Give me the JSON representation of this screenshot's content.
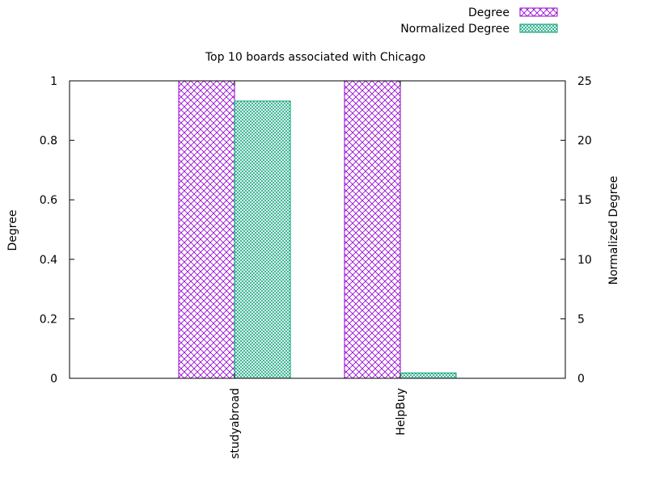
{
  "chart_data": {
    "type": "bar",
    "title": "Top 10 boards associated with Chicago",
    "categories": [
      "studyabroad",
      "HelpBuy"
    ],
    "ylabel": "Degree",
    "y2label": "Normalized Degree",
    "ylim": [
      0,
      1
    ],
    "y2lim": [
      0,
      25
    ],
    "yticks": [
      "0",
      "0.2",
      "0.4",
      "0.6",
      "0.8",
      "1"
    ],
    "y2ticks": [
      "0",
      "5",
      "10",
      "15",
      "20",
      "25"
    ],
    "legend_position": "top-right",
    "series": [
      {
        "name": "Degree",
        "axis": "y",
        "values": [
          1,
          1
        ],
        "color": "#9400d3",
        "pattern": "crosshatch"
      },
      {
        "name": "Normalized Degree",
        "axis": "y2",
        "values": [
          23.3,
          0.45
        ],
        "color": "#009e73",
        "pattern": "dense-crosshatch"
      }
    ]
  }
}
